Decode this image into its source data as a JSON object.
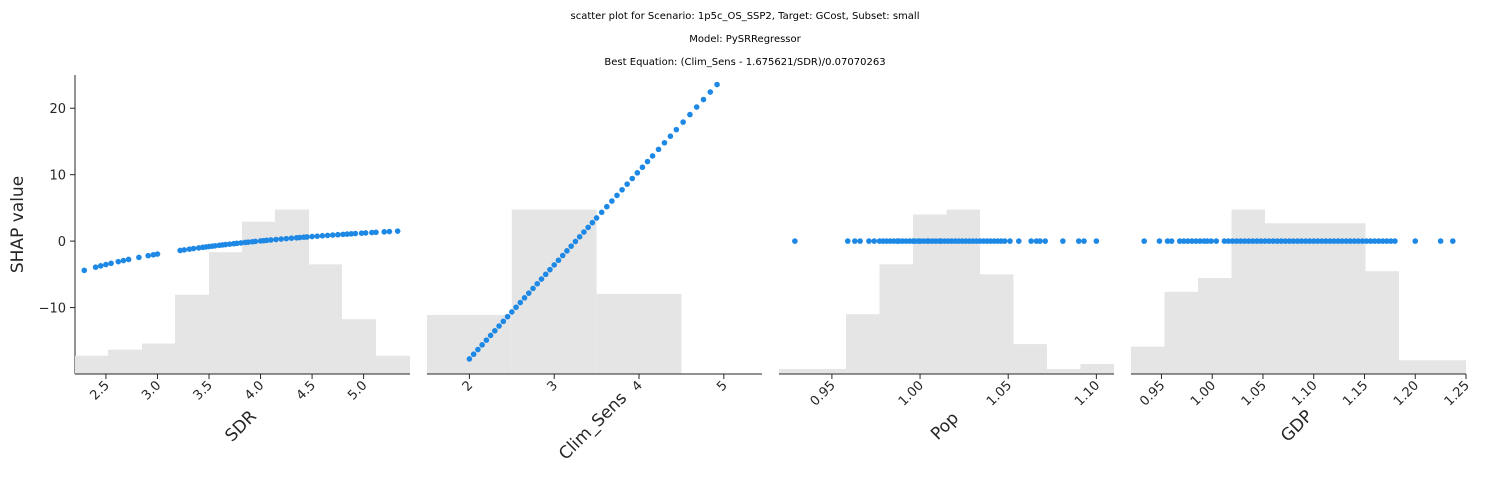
{
  "title_lines": [
    "scatter plot for Scenario: 1p5c_OS_SSP2, Target: GCost, Subset: small",
    "Model: PySRRegressor",
    "Best Equation: (Clim_Sens - 1.675621/SDR)/0.07070263"
  ],
  "colors": {
    "point": "#1e88e5",
    "hist": "#e5e5e5",
    "axis": "#262626"
  },
  "chart_data": {
    "type": "scatter",
    "ylabel": "SHAP value",
    "ylim": [
      -20,
      25
    ],
    "yticks": [
      20,
      10,
      0,
      -10
    ],
    "ytick_labels": [
      "20",
      "10",
      "0",
      "−10"
    ],
    "panels": [
      {
        "name": "SDR",
        "xlabel": "SDR",
        "xlim": [
          2.2,
          5.45
        ],
        "xticks": [
          2.5,
          3.0,
          3.5,
          4.0,
          4.5,
          5.0
        ],
        "xtick_labels": [
          "2.5",
          "3.0",
          "3.5",
          "4.0",
          "4.5",
          "5.0"
        ],
        "x_rotation": 45,
        "shap_formula": "-23.699/x",
        "x": [
          2.29,
          2.4,
          2.45,
          2.5,
          2.55,
          2.62,
          2.67,
          2.72,
          2.82,
          2.91,
          2.96,
          3.0,
          3.22,
          3.26,
          3.31,
          3.35,
          3.4,
          3.44,
          3.47,
          3.5,
          3.53,
          3.56,
          3.6,
          3.63,
          3.66,
          3.7,
          3.74,
          3.77,
          3.81,
          3.85,
          3.88,
          3.92,
          3.95,
          4.0,
          4.03,
          4.06,
          4.1,
          4.15,
          4.2,
          4.25,
          4.3,
          4.35,
          4.38,
          4.42,
          4.45,
          4.5,
          4.55,
          4.6,
          4.65,
          4.7,
          4.75,
          4.8,
          4.84,
          4.88,
          4.92,
          4.98,
          5.02,
          5.08,
          5.12,
          5.2,
          5.25,
          5.33
        ],
        "hist_edges": [
          2.2,
          2.52,
          2.85,
          3.17,
          3.5,
          3.82,
          4.14,
          4.47,
          4.79,
          5.12,
          5.45
        ],
        "hist_counts": [
          3,
          4,
          5,
          13,
          20,
          25,
          27,
          18,
          9,
          3
        ]
      },
      {
        "name": "Clim_Sens",
        "xlabel": "Clim_Sens",
        "xlim": [
          1.5,
          5.45
        ],
        "xticks": [
          2,
          3,
          4,
          5
        ],
        "xtick_labels": [
          "2",
          "3",
          "4",
          "5"
        ],
        "x_rotation": 45,
        "shap_formula": "14.1438*x - 46.02",
        "x": [
          2.0,
          2.05,
          2.1,
          2.15,
          2.2,
          2.25,
          2.3,
          2.35,
          2.4,
          2.45,
          2.5,
          2.55,
          2.6,
          2.65,
          2.7,
          2.75,
          2.8,
          2.85,
          2.9,
          2.95,
          3.0,
          3.05,
          3.1,
          3.15,
          3.2,
          3.25,
          3.3,
          3.35,
          3.4,
          3.45,
          3.5,
          3.56,
          3.62,
          3.68,
          3.74,
          3.8,
          3.86,
          3.92,
          3.98,
          4.04,
          4.1,
          4.16,
          4.23,
          4.3,
          4.37,
          4.44,
          4.52,
          4.6,
          4.68,
          4.76,
          4.84,
          4.92
        ],
        "hist_edges": [
          1.5,
          2.5,
          3.5,
          4.5,
          5.5
        ],
        "hist_counts": [
          14,
          39,
          19,
          0
        ]
      },
      {
        "name": "Pop",
        "xlabel": "Pop",
        "xlim": [
          0.92,
          1.11
        ],
        "xticks": [
          0.95,
          1.0,
          1.05,
          1.1
        ],
        "xtick_labels": [
          "0.95",
          "1.00",
          "1.05",
          "1.10"
        ],
        "x_rotation": 45,
        "shap_formula": "0",
        "x": [
          0.929,
          0.959,
          0.963,
          0.966,
          0.971,
          0.974,
          0.977,
          0.979,
          0.981,
          0.983,
          0.985,
          0.987,
          0.988,
          0.99,
          0.992,
          0.994,
          0.996,
          0.997,
          0.999,
          1.0,
          1.002,
          1.004,
          1.005,
          1.007,
          1.009,
          1.011,
          1.012,
          1.014,
          1.016,
          1.018,
          1.02,
          1.022,
          1.024,
          1.026,
          1.028,
          1.03,
          1.032,
          1.034,
          1.036,
          1.038,
          1.04,
          1.042,
          1.044,
          1.046,
          1.048,
          1.051,
          1.056,
          1.063,
          1.066,
          1.068,
          1.071,
          1.081,
          1.09,
          1.093,
          1.1
        ],
        "hist_edges": [
          0.92,
          0.939,
          0.958,
          0.977,
          0.996,
          1.015,
          1.034,
          1.053,
          1.072,
          1.091,
          1.11
        ],
        "hist_counts": [
          1,
          1,
          12,
          22,
          32,
          33,
          20,
          6,
          1,
          2
        ]
      },
      {
        "name": "GDP",
        "xlabel": "GDP",
        "xlim": [
          0.92,
          1.25
        ],
        "xticks": [
          0.95,
          1.0,
          1.05,
          1.1,
          1.15,
          1.2,
          1.25
        ],
        "xtick_labels": [
          "0.95",
          "1.00",
          "1.05",
          "1.10",
          "1.15",
          "1.20",
          "1.25"
        ],
        "x_rotation": 45,
        "shap_formula": "0",
        "x": [
          0.933,
          0.948,
          0.956,
          0.96,
          0.968,
          0.972,
          0.976,
          0.98,
          0.984,
          0.988,
          0.992,
          0.995,
          0.999,
          1.004,
          1.012,
          1.016,
          1.02,
          1.024,
          1.028,
          1.032,
          1.036,
          1.04,
          1.044,
          1.048,
          1.052,
          1.056,
          1.06,
          1.064,
          1.068,
          1.072,
          1.076,
          1.08,
          1.084,
          1.088,
          1.092,
          1.096,
          1.1,
          1.104,
          1.108,
          1.112,
          1.116,
          1.12,
          1.124,
          1.128,
          1.132,
          1.136,
          1.14,
          1.144,
          1.148,
          1.152,
          1.156,
          1.16,
          1.164,
          1.168,
          1.172,
          1.176,
          1.18,
          1.2,
          1.225,
          1.237
        ],
        "hist_edges": [
          0.92,
          0.953,
          0.986,
          1.019,
          1.052,
          1.085,
          1.118,
          1.151,
          1.184,
          1.217,
          1.25
        ],
        "hist_counts": [
          4,
          12,
          14,
          24,
          22,
          22,
          22,
          15,
          2,
          2
        ]
      }
    ]
  }
}
